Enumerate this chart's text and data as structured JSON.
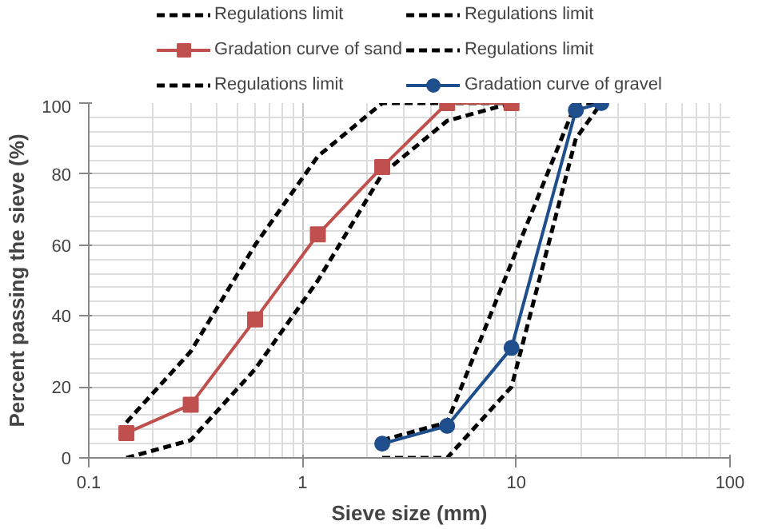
{
  "chart_data": {
    "type": "line",
    "xlabel": "Sieve size (mm)",
    "ylabel": "Percent passing the sieve (%)",
    "log": "x",
    "xlim": [
      0.1,
      100
    ],
    "xticks": [
      0.1,
      1,
      10,
      100
    ],
    "ylim": [
      0,
      100
    ],
    "yticks": [
      0,
      20,
      40,
      60,
      80,
      100
    ],
    "grid": true,
    "legend": "top",
    "series": [
      {
        "name": "Regulations limit",
        "color": "#000000",
        "line_style": "dashed",
        "marker": "none",
        "x": [
          0.15,
          0.3,
          0.6,
          1.18,
          2.36,
          4.75,
          9.5
        ],
        "values": [
          10,
          30,
          60,
          85,
          100,
          100,
          100
        ]
      },
      {
        "name": "Regulations limit",
        "color": "#000000",
        "line_style": "dashed",
        "marker": "none",
        "x": [
          0.15,
          0.3,
          0.6,
          1.18,
          2.36,
          4.75,
          9.5
        ],
        "values": [
          0,
          5,
          25,
          50,
          80,
          95,
          100
        ]
      },
      {
        "name": "Gradation curve of sand",
        "color": "#c0504d",
        "line_style": "solid",
        "marker": "square",
        "x": [
          0.15,
          0.3,
          0.6,
          1.18,
          2.36,
          4.75,
          9.5
        ],
        "values": [
          7,
          15,
          39,
          63,
          82,
          100,
          100
        ]
      },
      {
        "name": "Regulations limit",
        "color": "#000000",
        "line_style": "dashed",
        "marker": "none",
        "x": [
          2.36,
          4.75,
          9.5,
          19,
          25
        ],
        "values": [
          5,
          10,
          55,
          100,
          100
        ]
      },
      {
        "name": "Regulations limit",
        "color": "#000000",
        "line_style": "dashed",
        "marker": "none",
        "x": [
          2.36,
          4.75,
          9.5,
          19,
          25
        ],
        "values": [
          0,
          0,
          20,
          90,
          100
        ]
      },
      {
        "name": "Gradation curve of gravel",
        "color": "#1f4e8c",
        "line_style": "solid",
        "marker": "circle",
        "x": [
          2.36,
          4.75,
          9.5,
          19,
          25
        ],
        "values": [
          4,
          9,
          31,
          98,
          100
        ]
      }
    ]
  }
}
